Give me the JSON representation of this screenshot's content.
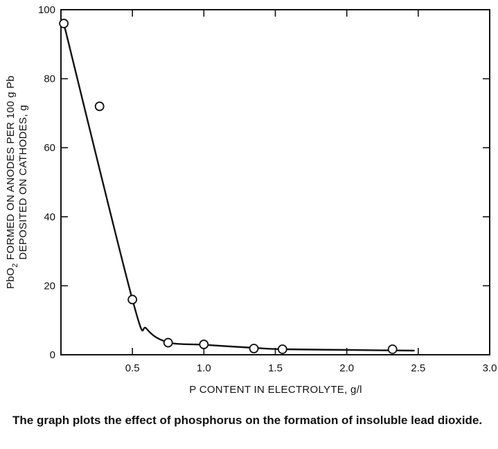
{
  "chart_data": {
    "type": "scatter",
    "xlabel": "P CONTENT IN ELECTROLYTE, g/l",
    "ylabel_line1_main": "PbO",
    "ylabel_line1_sub": "2",
    "ylabel_line1_rest": " FORMED ON ANODES PER 100 g Pb",
    "ylabel_line2": "DEPOSITED ON CATHODES, g",
    "xlim": [
      0,
      3.0
    ],
    "ylim": [
      0,
      100
    ],
    "x_ticks": [
      0.5,
      1.0,
      1.5,
      2.0,
      2.5,
      3.0
    ],
    "x_tick_labels": [
      "0.5",
      "1.0",
      "1.5",
      "2.0",
      "2.5",
      "3.0"
    ],
    "y_ticks": [
      0,
      20,
      40,
      60,
      80,
      100
    ],
    "y_tick_labels": [
      "0",
      "20",
      "40",
      "60",
      "80",
      "100"
    ],
    "points": [
      {
        "x": 0.02,
        "y": 96
      },
      {
        "x": 0.27,
        "y": 72
      },
      {
        "x": 0.5,
        "y": 16
      },
      {
        "x": 0.75,
        "y": 3.5
      },
      {
        "x": 1.0,
        "y": 3.0
      },
      {
        "x": 1.35,
        "y": 1.8
      },
      {
        "x": 1.55,
        "y": 1.6
      },
      {
        "x": 2.32,
        "y": 1.6
      }
    ],
    "curve": [
      {
        "x": 0.02,
        "y": 96
      },
      {
        "x": 0.5,
        "y": 16
      },
      {
        "x": 0.6,
        "y": 7.5
      },
      {
        "x": 0.75,
        "y": 3.6
      },
      {
        "x": 1.0,
        "y": 2.9
      },
      {
        "x": 1.35,
        "y": 2.0
      },
      {
        "x": 1.55,
        "y": 1.6
      },
      {
        "x": 2.0,
        "y": 1.4
      },
      {
        "x": 2.47,
        "y": 1.2
      }
    ],
    "grid": false,
    "marker": "open-circle"
  },
  "caption": "The graph plots the effect of phosphorus on the formation of insoluble lead dioxide."
}
